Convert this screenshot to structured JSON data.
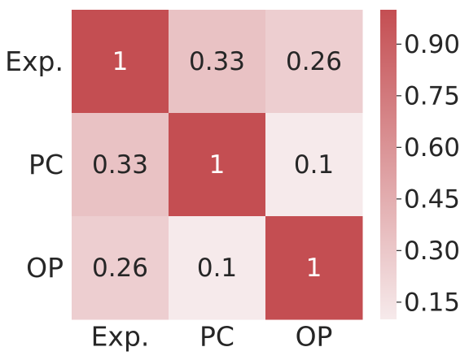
{
  "chart_data": {
    "type": "heatmap",
    "x_categories": [
      "Exp.",
      "PC",
      "OP"
    ],
    "y_categories": [
      "Exp.",
      "PC",
      "OP"
    ],
    "values": [
      [
        1,
        0.33,
        0.26
      ],
      [
        0.33,
        1,
        0.1
      ],
      [
        0.26,
        0.1,
        1
      ]
    ],
    "zlim": [
      0.1,
      1
    ],
    "colors": [
      "#f6eaeb",
      "#c44e52"
    ],
    "colorbar_ticks": [
      0.15,
      {
        "value": 0.3,
        "label": "0.30"
      },
      0.45,
      {
        "value": 0.6,
        "label": "0.60"
      },
      0.75,
      {
        "value": 0.9,
        "label": "0.90"
      }
    ]
  }
}
